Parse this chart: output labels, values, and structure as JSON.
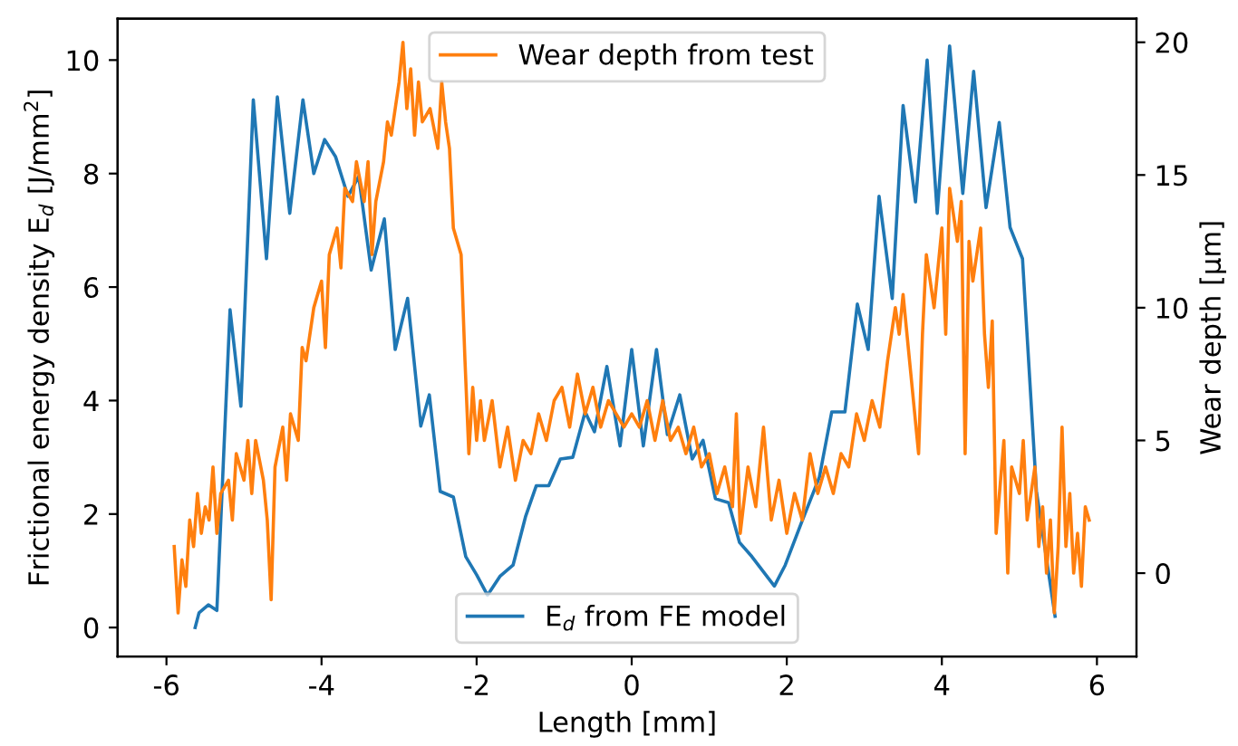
{
  "chart_data": {
    "type": "line",
    "xlabel": "Length [mm]",
    "ylabel": "Frictional energy density E$_{d}$ [J/mm$^{2}$]",
    "y2label": "Wear depth [µm]",
    "xlim": [
      -6.63,
      6.51
    ],
    "xticks": [
      -6,
      -4,
      -2,
      0,
      2,
      4,
      6
    ],
    "ylim": [
      -0.51,
      10.73
    ],
    "yticks": [
      0,
      2,
      4,
      6,
      8,
      10
    ],
    "y2lim": [
      -3.14,
      20.89
    ],
    "y2ticks": [
      0,
      5,
      10,
      15,
      20
    ],
    "grid": false,
    "legend": "top",
    "series": [
      {
        "name": "E$_{d}$ from FE model",
        "color": "#1f77b4",
        "axis": "y",
        "x": [
          -5.63,
          -5.58,
          -5.46,
          -5.35,
          -5.18,
          -5.04,
          -4.88,
          -4.71,
          -4.57,
          -4.41,
          -4.24,
          -4.1,
          -3.96,
          -3.82,
          -3.66,
          -3.52,
          -3.36,
          -3.19,
          -3.05,
          -2.89,
          -2.72,
          -2.61,
          -2.47,
          -2.3,
          -2.14,
          -2.0,
          -1.86,
          -1.7,
          -1.53,
          -1.37,
          -1.23,
          -1.07,
          -0.92,
          -0.76,
          -0.6,
          -0.48,
          -0.32,
          -0.15,
          0,
          0.15,
          0.32,
          0.46,
          0.62,
          0.78,
          0.92,
          1.08,
          1.25,
          1.39,
          1.55,
          1.84,
          1.98,
          2.19,
          2.42,
          2.58,
          2.75,
          2.91,
          3.05,
          3.19,
          3.36,
          3.5,
          3.66,
          3.81,
          3.94,
          4.1,
          4.27,
          4.41,
          4.57,
          4.74,
          4.88,
          5.04,
          5.22,
          5.46
        ],
        "values": [
          0,
          0.26,
          0.4,
          0.3,
          5.6,
          3.9,
          9.3,
          6.5,
          9.35,
          7.3,
          9.3,
          8.0,
          8.6,
          8.3,
          7.6,
          7.95,
          6.3,
          7.2,
          4.9,
          5.8,
          3.55,
          4.1,
          2.4,
          2.3,
          1.25,
          0.93,
          0.57,
          0.9,
          1.1,
          1.95,
          2.5,
          2.5,
          2.97,
          3.0,
          3.8,
          3.45,
          4.6,
          3.2,
          4.9,
          3.2,
          4.9,
          3.4,
          4.1,
          2.97,
          3.3,
          2.27,
          2.2,
          1.5,
          1.25,
          0.73,
          1.1,
          1.85,
          2.65,
          3.8,
          3.8,
          5.7,
          4.9,
          7.6,
          5.8,
          9.2,
          7.5,
          10.0,
          7.3,
          10.25,
          7.65,
          9.8,
          7.4,
          8.9,
          7.05,
          6.5,
          2.4,
          0.2
        ]
      },
      {
        "name": "Wear depth from test",
        "color": "#ff7f0e",
        "axis": "y2",
        "x": [
          -5.9,
          -5.85,
          -5.8,
          -5.75,
          -5.7,
          -5.65,
          -5.6,
          -5.55,
          -5.5,
          -5.45,
          -5.4,
          -5.35,
          -5.3,
          -5.2,
          -5.15,
          -5.1,
          -5.0,
          -4.95,
          -4.9,
          -4.85,
          -4.75,
          -4.7,
          -4.65,
          -4.6,
          -4.5,
          -4.45,
          -4.4,
          -4.3,
          -4.25,
          -4.2,
          -4.1,
          -4.0,
          -3.95,
          -3.9,
          -3.8,
          -3.75,
          -3.7,
          -3.6,
          -3.55,
          -3.45,
          -3.4,
          -3.35,
          -3.3,
          -3.2,
          -3.15,
          -3.1,
          -3.0,
          -2.95,
          -2.9,
          -2.85,
          -2.8,
          -2.75,
          -2.7,
          -2.6,
          -2.5,
          -2.45,
          -2.4,
          -2.35,
          -2.3,
          -2.2,
          -2.15,
          -2.1,
          -2.05,
          -2.0,
          -1.95,
          -1.9,
          -1.8,
          -1.7,
          -1.6,
          -1.5,
          -1.4,
          -1.3,
          -1.2,
          -1.1,
          -1.0,
          -0.9,
          -0.8,
          -0.7,
          -0.6,
          -0.5,
          -0.4,
          -0.3,
          -0.2,
          -0.1,
          0.0,
          0.1,
          0.2,
          0.3,
          0.4,
          0.5,
          0.6,
          0.7,
          0.8,
          0.9,
          1.0,
          1.1,
          1.2,
          1.3,
          1.35,
          1.4,
          1.5,
          1.6,
          1.7,
          1.8,
          1.9,
          2.0,
          2.1,
          2.2,
          2.3,
          2.4,
          2.5,
          2.6,
          2.7,
          2.8,
          2.9,
          3.0,
          3.1,
          3.2,
          3.3,
          3.4,
          3.45,
          3.5,
          3.6,
          3.7,
          3.75,
          3.8,
          3.9,
          4.0,
          4.05,
          4.1,
          4.2,
          4.25,
          4.3,
          4.35,
          4.4,
          4.5,
          4.55,
          4.6,
          4.65,
          4.7,
          4.8,
          4.85,
          4.9,
          5.0,
          5.05,
          5.1,
          5.2,
          5.25,
          5.3,
          5.35,
          5.4,
          5.45,
          5.5,
          5.55,
          5.6,
          5.65,
          5.7,
          5.75,
          5.8,
          5.85,
          5.9
        ],
        "values": [
          1.0,
          -1.5,
          0.5,
          -0.5,
          2.0,
          1.0,
          3.0,
          1.5,
          2.5,
          2.0,
          4.0,
          1.5,
          3.0,
          3.5,
          2.0,
          4.5,
          3.5,
          5.0,
          3.0,
          5.0,
          3.5,
          2.0,
          -1.0,
          4.0,
          5.5,
          3.5,
          6.0,
          5.0,
          8.5,
          8.0,
          10.0,
          11.0,
          8.5,
          12.0,
          13.0,
          11.5,
          14.5,
          14.0,
          15.5,
          14.0,
          15.5,
          12.0,
          14.0,
          15.5,
          17.0,
          16.5,
          18.5,
          20.0,
          17.5,
          19.0,
          16.5,
          18.5,
          17.0,
          17.5,
          16.0,
          18.5,
          17.0,
          16.0,
          13.0,
          12.0,
          8.0,
          4.5,
          7.0,
          5.0,
          6.5,
          5.0,
          6.5,
          4.0,
          5.5,
          3.5,
          5.0,
          4.5,
          6.0,
          5.0,
          6.5,
          7.0,
          5.5,
          7.5,
          6.0,
          7.0,
          5.5,
          6.5,
          6.0,
          5.5,
          6.0,
          5.5,
          6.5,
          5.0,
          6.5,
          5.0,
          5.5,
          4.5,
          5.5,
          4.0,
          4.5,
          3.0,
          4.0,
          2.5,
          6.0,
          1.5,
          4.0,
          2.5,
          5.5,
          2.0,
          3.5,
          1.5,
          3.0,
          2.0,
          4.5,
          3.0,
          4.0,
          3.0,
          4.5,
          4.0,
          6.0,
          5.0,
          6.5,
          5.5,
          8.0,
          10.0,
          9.0,
          10.5,
          7.5,
          4.5,
          9.0,
          12.0,
          10.0,
          13.0,
          9.0,
          14.5,
          12.5,
          14.0,
          4.5,
          12.5,
          11.0,
          13.0,
          9.0,
          7.0,
          9.5,
          1.5,
          5.0,
          0.0,
          4.0,
          3.0,
          5.0,
          2.0,
          4.0,
          1.0,
          2.5,
          0.0,
          2.0,
          -1.5,
          1.0,
          5.5,
          1.0,
          3.0,
          0.0,
          1.5,
          -0.5,
          2.5,
          2.0
        ]
      }
    ]
  }
}
